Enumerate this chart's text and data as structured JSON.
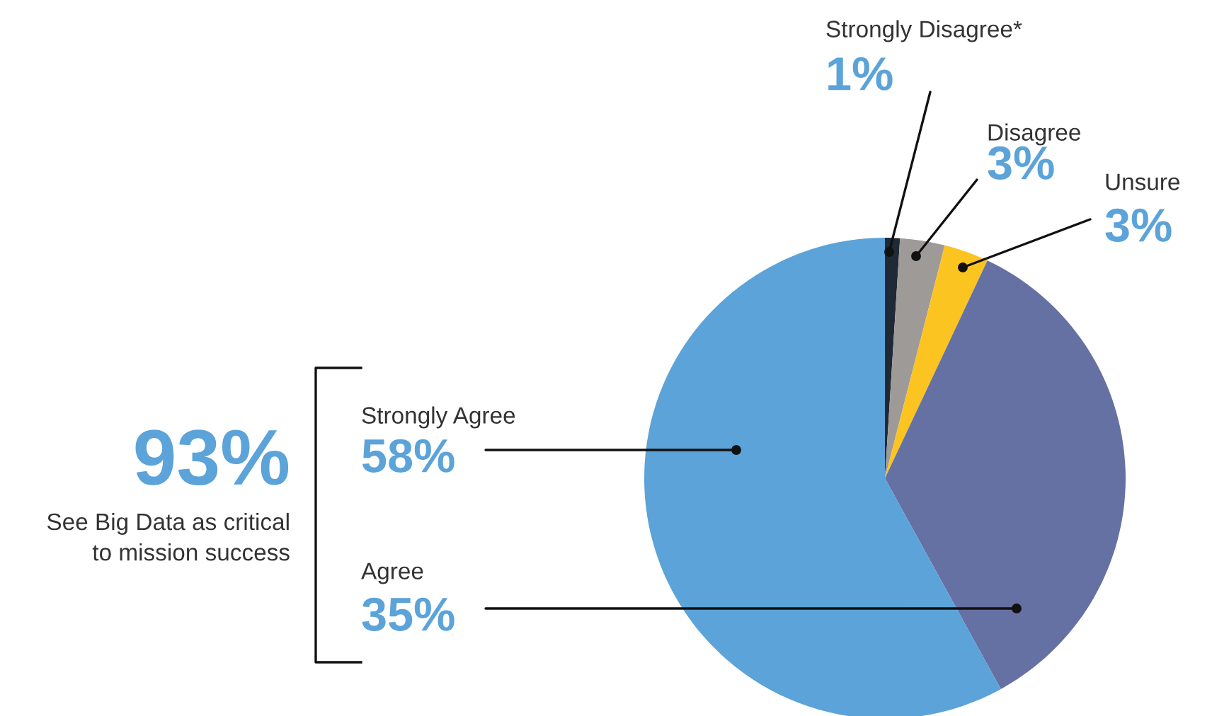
{
  "chart_data": {
    "type": "pie",
    "categories": [
      "Strongly Disagree*",
      "Disagree",
      "Unsure",
      "Agree",
      "Strongly Agree"
    ],
    "values": [
      1,
      3,
      3,
      35,
      58
    ],
    "value_labels": [
      "1%",
      "3%",
      "3%",
      "35%",
      "58%"
    ],
    "colors": [
      "#1f2a36",
      "#9e9a98",
      "#fcc421",
      "#6571a2",
      "#5ba3d9"
    ],
    "annotations": [
      "93%",
      "See Big Data as critical\nto mission success"
    ]
  }
}
